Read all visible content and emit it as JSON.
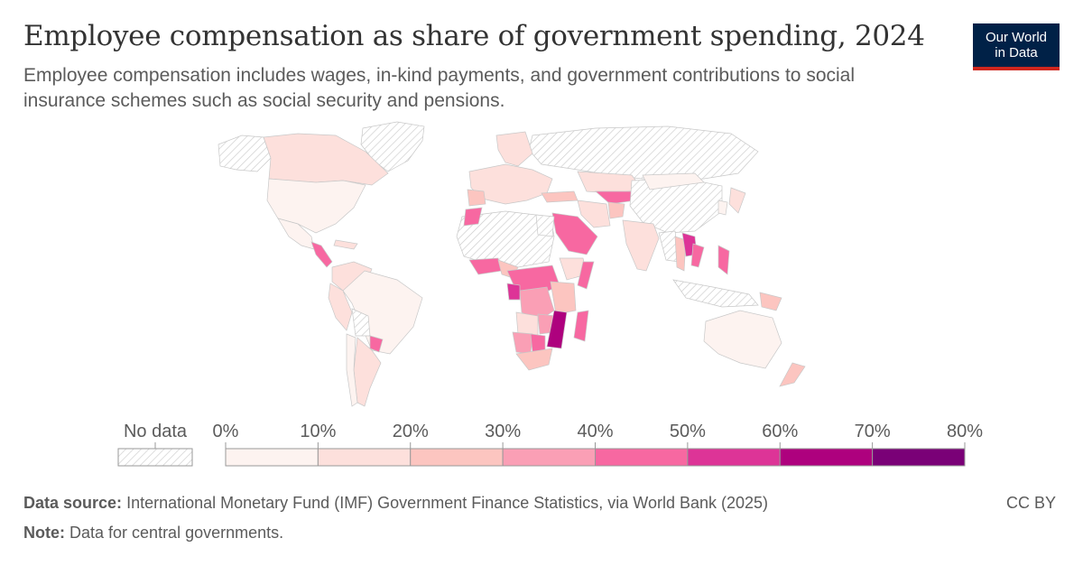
{
  "header": {
    "title": "Employee compensation as share of government spending, 2024",
    "subtitle": "Employee compensation includes wages, in-kind payments, and government contributions to social insurance schemes such as social security and pensions."
  },
  "logo": {
    "line1": "Our World",
    "line2": "in Data"
  },
  "legend": {
    "no_data_label": "No data",
    "tick_labels": [
      "0%",
      "10%",
      "20%",
      "30%",
      "40%",
      "50%",
      "60%",
      "70%",
      "80%"
    ],
    "colors": [
      "#fdf3f0",
      "#fde0dc",
      "#fcc5c0",
      "#fa9fb5",
      "#f768a1",
      "#dd3497",
      "#ae017e",
      "#7a0177"
    ],
    "no_data_color": "#cccccc"
  },
  "chart_data": {
    "type": "choropleth",
    "year": "2024",
    "unit": "%",
    "bins": [
      {
        "min": 0,
        "max": 10,
        "color": "#fdf3f0"
      },
      {
        "min": 10,
        "max": 20,
        "color": "#fde0dc"
      },
      {
        "min": 20,
        "max": 30,
        "color": "#fcc5c0"
      },
      {
        "min": 30,
        "max": 40,
        "color": "#fa9fb5"
      },
      {
        "min": 40,
        "max": 50,
        "color": "#f768a1"
      },
      {
        "min": 50,
        "max": 60,
        "color": "#dd3497"
      },
      {
        "min": 60,
        "max": 70,
        "color": "#ae017e"
      },
      {
        "min": 70,
        "max": 80,
        "color": "#7a0177"
      }
    ]
  },
  "footer": {
    "source_label": "Data source:",
    "source_text": "International Monetary Fund (IMF) Government Finance Statistics, via World Bank (2025)",
    "note_label": "Note:",
    "note_text": "Data for central governments.",
    "license": "CC BY"
  }
}
